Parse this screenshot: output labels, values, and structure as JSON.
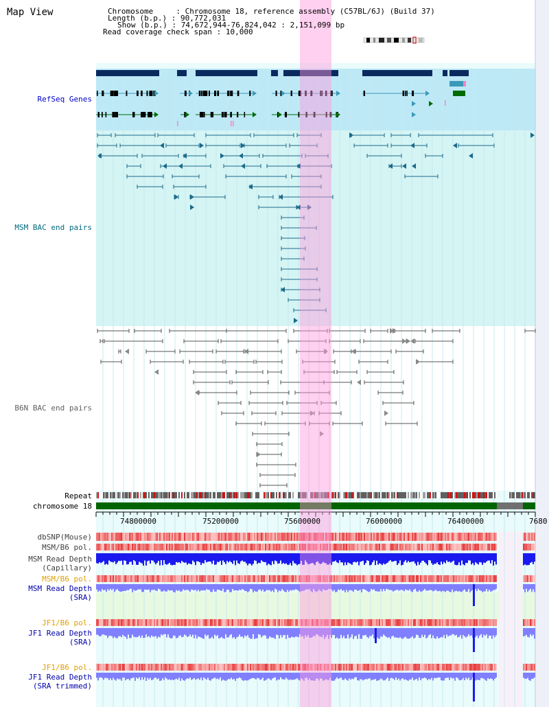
{
  "title": "Map View",
  "info": {
    "chromosome_label": "Chromosome",
    "chromosome_value": "Chromosome 18, reference assembly (C57BL/6J) (Build 37)",
    "length_label": "Length (b.p.)",
    "length_value": "90,772,031",
    "show_label": "Show (b.p.)",
    "show_value": "74,672,944-76,824,042 : 2,151,099 bp",
    "coverage_label": "Read coverage check span",
    "coverage_value": "10,000"
  },
  "tracks": {
    "refseq": "RefSeq Genes",
    "msm_bac": "MSM BAC end pairs",
    "b6n_bac": "B6N BAC end pairs",
    "repeat": "Repeat",
    "chromosome": "chromosome 18",
    "dbsnp": "dbSNP(Mouse)",
    "msm_b6_pol_1": "MSM/B6 pol.",
    "msm_depth_cap_1": "MSM Read Depth",
    "msm_depth_cap_2": "(Capillary)",
    "msm_b6_pol_2": "MSM/B6 pol.",
    "msm_depth_sra_1": "MSM Read Depth",
    "msm_depth_sra_2": "(SRA)",
    "jf1_b6_pol_1": "JF1/B6 pol.",
    "jf1_depth_sra_1": "JF1 Read Depth",
    "jf1_depth_sra_2": "(SRA)",
    "jf1_b6_pol_2": "JF1/B6 pol.",
    "jf1_depth_trim_1": "JF1 Read Depth",
    "jf1_depth_trim_2": "(SRA trimmed)"
  },
  "axis": {
    "ticks": [
      "74800000",
      "75200000",
      "75600000",
      "76000000",
      "76400000",
      "7680"
    ]
  },
  "colors": {
    "gene_dark": "#0a2a5e",
    "gene_teal": "#3a9ab8",
    "gene_green": "#006b00",
    "msm_bac": "#1a6a8a",
    "b6n_bac": "#555555",
    "chrom_green": "#006400",
    "depth_blue": "#1a1aee",
    "depth_light": "#8080ff",
    "snp_red": "#e83030",
    "highlight": "#ff96dc",
    "label_blue": "#0000cc",
    "label_teal": "#006a80",
    "label_orange": "#e0a000",
    "label_gray": "#404040"
  },
  "icons": [
    "chromosome-ideogram-icon"
  ]
}
